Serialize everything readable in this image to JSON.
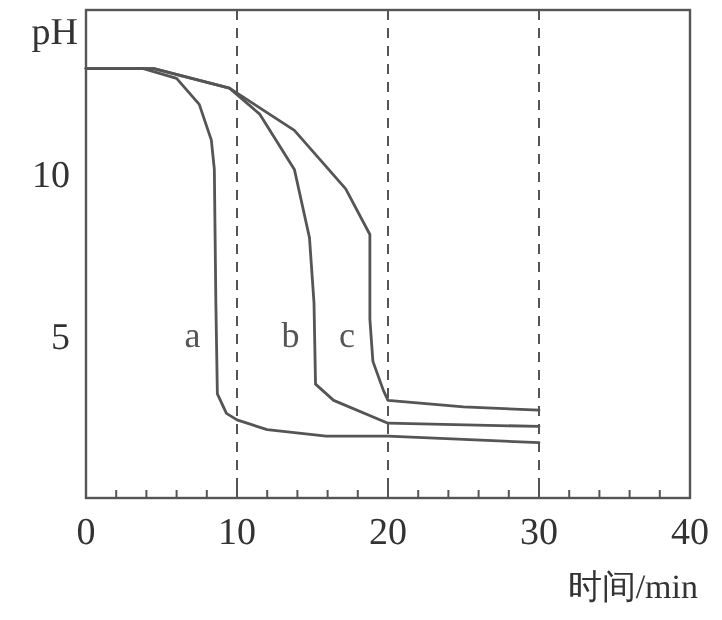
{
  "chart_data": {
    "type": "line",
    "xlabel": "时间/min",
    "ylabel": "pH",
    "xlim": [
      0,
      40
    ],
    "ylim": [
      0,
      15
    ],
    "xticks": [
      0,
      {
        "value": 2,
        "label": null
      },
      {
        "value": 4,
        "label": null
      },
      {
        "value": 6,
        "label": null
      },
      {
        "value": 8,
        "label": null
      },
      10,
      {
        "value": 12,
        "label": null
      },
      {
        "value": 14,
        "label": null
      },
      {
        "value": 16,
        "label": null
      },
      {
        "value": 18,
        "label": null
      },
      20,
      {
        "value": 22,
        "label": null
      },
      {
        "value": 24,
        "label": null
      },
      {
        "value": 26,
        "label": null
      },
      {
        "value": 28,
        "label": null
      },
      30,
      {
        "value": 32,
        "label": null
      },
      {
        "value": 34,
        "label": null
      },
      {
        "value": 36,
        "label": null
      },
      {
        "value": 38,
        "label": null
      },
      40
    ],
    "yticks": [
      5,
      10
    ],
    "grid": false,
    "line_style": "solid",
    "marker": "none",
    "series": [
      {
        "name": "a",
        "color": "#555555",
        "x": [
          0,
          3.8,
          6,
          7.5,
          8.3,
          8.5,
          8.6,
          8.7,
          9.3,
          10,
          12,
          15.9,
          20,
          30
        ],
        "values": [
          13.2,
          13.2,
          12.9,
          12.1,
          11,
          10.1,
          6,
          3.2,
          2.6,
          2.4,
          2.1,
          1.9,
          1.9,
          1.7
        ]
      },
      {
        "name": "b",
        "color": "#555555",
        "x": [
          0,
          4.5,
          9.5,
          11.5,
          13.8,
          14.8,
          15.1,
          15.2,
          16.4,
          20,
          30
        ],
        "values": [
          13.2,
          13.2,
          12.6,
          11.8,
          10.1,
          8,
          6,
          3.5,
          3.0,
          2.3,
          2.2
        ]
      },
      {
        "name": "c",
        "color": "#555555",
        "x": [
          0,
          4.5,
          9.5,
          13.8,
          17.2,
          18.8,
          18.8,
          19,
          19.7,
          20,
          25,
          30
        ],
        "values": [
          13.2,
          13.2,
          12.6,
          11.3,
          9.5,
          8.1,
          5.5,
          4.2,
          3.3,
          3.0,
          2.8,
          2.7
        ]
      }
    ],
    "ref_lines": [
      {
        "axis": "x",
        "value": 10,
        "color": "#555555",
        "line_style": "dashed"
      },
      {
        "axis": "x",
        "value": 20,
        "color": "#555555",
        "line_style": "dashed"
      },
      {
        "axis": "x",
        "value": 30,
        "color": "#555555",
        "line_style": "dashed"
      }
    ]
  }
}
